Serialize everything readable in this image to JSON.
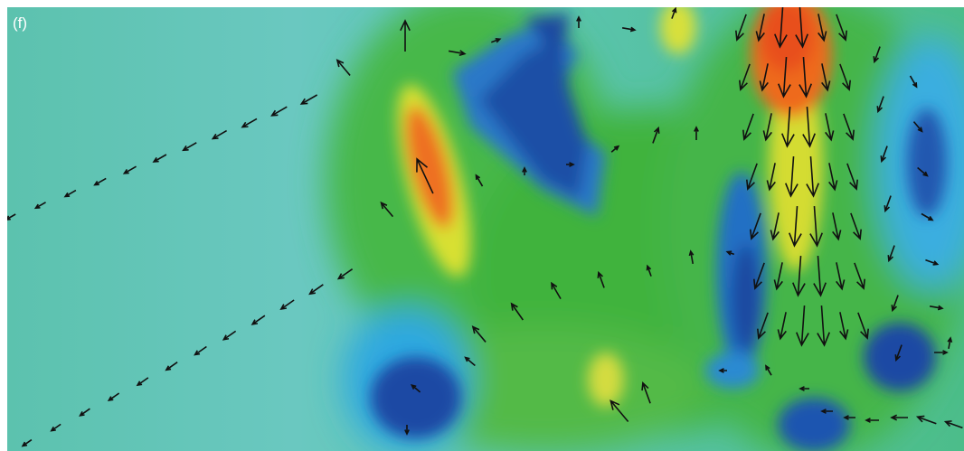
{
  "panel_label": "(f)"
}
